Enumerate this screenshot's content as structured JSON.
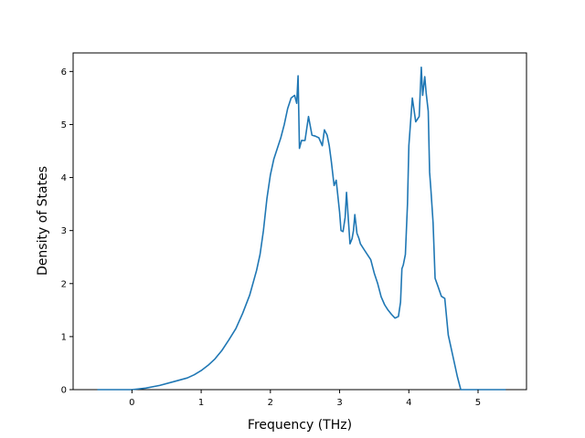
{
  "chart_data": {
    "type": "line",
    "title": "",
    "xlabel": "Frequency (THz)",
    "ylabel": "Density of States",
    "xlim": [
      -0.85,
      5.7
    ],
    "ylim": [
      0,
      6.35
    ],
    "xticks": [
      0,
      1,
      2,
      3,
      4,
      5
    ],
    "yticks": [
      0,
      1,
      2,
      3,
      4,
      5,
      6
    ],
    "grid": false,
    "legend": "none",
    "colors": {
      "line": "#1f77b4",
      "axes": "#000000",
      "background": "#ffffff"
    },
    "series": [
      {
        "x": [
          -0.5,
          0.0,
          0.2,
          0.4,
          0.6,
          0.8,
          0.9,
          1.0,
          1.1,
          1.2,
          1.3,
          1.4,
          1.5,
          1.6,
          1.7,
          1.8,
          1.85,
          1.9,
          1.95,
          2.0,
          2.05,
          2.1,
          2.15,
          2.2,
          2.25,
          2.3,
          2.35,
          2.38,
          2.4,
          2.42,
          2.45,
          2.5,
          2.55,
          2.6,
          2.65,
          2.7,
          2.75,
          2.78,
          2.8,
          2.82,
          2.85,
          2.88,
          2.92,
          2.95,
          3.0,
          3.02,
          3.05,
          3.08,
          3.1,
          3.15,
          3.18,
          3.2,
          3.22,
          3.25,
          3.28,
          3.3,
          3.35,
          3.4,
          3.45,
          3.5,
          3.55,
          3.6,
          3.65,
          3.7,
          3.75,
          3.8,
          3.85,
          3.88,
          3.9,
          3.92,
          3.95,
          3.98,
          4.0,
          4.05,
          4.1,
          4.15,
          4.18,
          4.2,
          4.23,
          4.25,
          4.28,
          4.3,
          4.32,
          4.35,
          4.38,
          4.42,
          4.47,
          4.52,
          4.57,
          4.6,
          4.65,
          4.7,
          4.75,
          4.8,
          4.85,
          4.88,
          4.9,
          4.92,
          5.0,
          5.4
        ],
        "values": [
          0,
          0,
          0.03,
          0.08,
          0.15,
          0.22,
          0.28,
          0.36,
          0.46,
          0.58,
          0.74,
          0.94,
          1.15,
          1.44,
          1.78,
          2.25,
          2.55,
          3.0,
          3.6,
          4.05,
          4.35,
          4.55,
          4.75,
          5.0,
          5.3,
          5.5,
          5.55,
          5.4,
          5.92,
          4.55,
          4.7,
          4.7,
          5.15,
          4.8,
          4.78,
          4.75,
          4.6,
          4.9,
          4.85,
          4.8,
          4.6,
          4.3,
          3.85,
          3.95,
          3.35,
          3.0,
          2.98,
          3.25,
          3.72,
          2.75,
          2.85,
          3.0,
          3.3,
          2.95,
          2.85,
          2.75,
          2.65,
          2.55,
          2.45,
          2.2,
          2.0,
          1.75,
          1.6,
          1.5,
          1.42,
          1.35,
          1.38,
          1.65,
          2.28,
          2.35,
          2.55,
          3.5,
          4.6,
          5.5,
          5.05,
          5.15,
          6.08,
          5.55,
          5.9,
          5.6,
          5.25,
          4.1,
          3.75,
          3.15,
          2.1,
          1.95,
          1.76,
          1.72,
          1.03,
          0.85,
          0.55,
          0.25,
          0.0,
          0.0,
          0.0,
          0.0,
          0.0,
          0.0,
          0.0,
          0.0
        ]
      }
    ]
  }
}
